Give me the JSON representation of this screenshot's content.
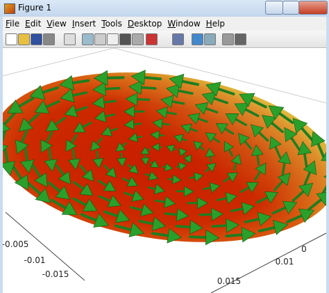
{
  "window": {
    "title": "Figure 1"
  },
  "menu": [
    "File",
    "Edit",
    "View",
    "Insert",
    "Tools",
    "Desktop",
    "Window",
    "Help"
  ],
  "axes": {
    "left_ticks": [
      "-0.005",
      "-0.01",
      "-0.015"
    ],
    "right_ticks": [
      "0",
      "0.01",
      "0.015"
    ]
  }
}
